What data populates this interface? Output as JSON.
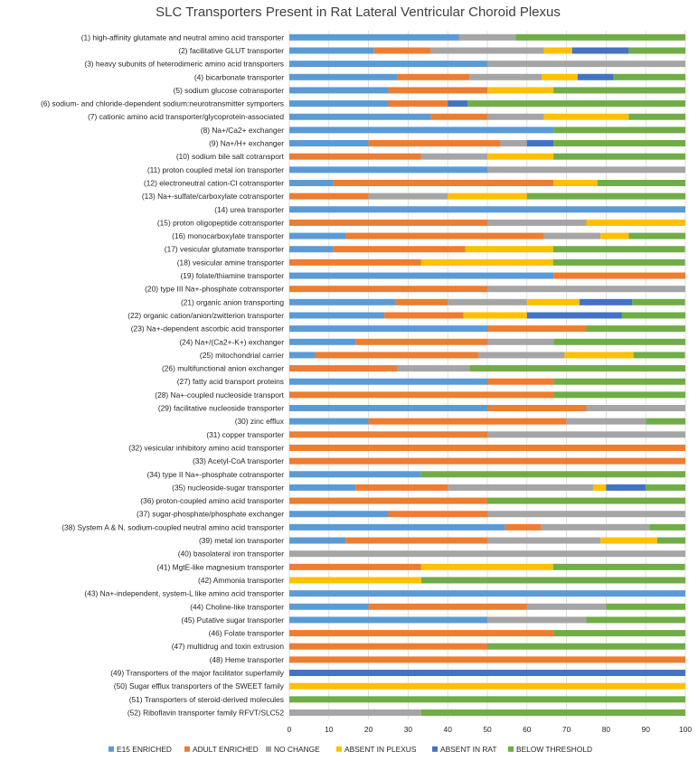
{
  "chart_data": {
    "type": "bar",
    "orientation": "horizontal",
    "stacked": true,
    "title": "SLC Transporters Present in Rat Lateral Ventricular Choroid Plexus",
    "xlim": [
      0,
      100
    ],
    "xticks": [
      "0",
      "10",
      "20",
      "30",
      "40",
      "50",
      "60",
      "70",
      "80",
      "90",
      "100"
    ],
    "grid": "vertical",
    "legend_position": "bottom",
    "categories": [
      "(1) high-affinity glutamate and neutral amino acid transporter",
      "(2) facilitative GLUT transporter",
      "(3) heavy subunits of heterodimeric amino acid transporters",
      "(4) bicarbonate transporter",
      "(5) sodium glucose cotransporter",
      "(6) sodium- and chloride-dependent sodium:neurotransmitter symporters",
      "(7) cationic amino acid transporter/glycoprotein-associated",
      "(8) Na+/Ca2+ exchanger",
      "(9) Na+/H+ exchanger",
      "(10) sodium bile salt cotransport",
      "(11) proton coupled metal ion transporter",
      "(12) electroneutral cation-Cl cotransporter",
      "(13) Na+-sulfate/carboxylate cotransporter",
      "(14) urea transporter",
      "(15) proton oligopeptide cotransporter",
      "(16) monocarboxylate transporter",
      "(17) vesicular glutamate transporter",
      "(18) vesicular amine transporter",
      "(19) folate/thiamine transporter",
      "(20) type III Na+-phosphate cotransporter",
      "(21) organic anion transporting",
      "(22) organic cation/anion/zwitterion transporter",
      "(23) Na+-dependent ascorbic acid transporter",
      "(24) Na+/(Ca2+-K+) exchanger",
      "(25) mitochondrial carrier",
      "(26) multifunctional anion exchanger",
      "(27) fatty acid transport proteins",
      "(28) Na+-coupled nucleoside transport",
      "(29) facilitative nucleoside transporter",
      "(30) zinc efflux",
      "(31) copper transporter",
      "(32) vesicular inhibitory amino acid transporter",
      "(33) Acetyl-CoA transporter",
      "(34) type II Na+-phosphate cotransporter",
      "(35) nucleoside-sugar transporter",
      "(36) proton-coupled amino acid transporter",
      "(37) sugar-phosphate/phosphate exchanger",
      "(38) System A & N, sodium-coupled neutral amino acid transporter",
      "(39) metal ion transporter",
      "(40) basolateral iron transporter",
      "(41) MgtE-like magnesium transporter",
      "(42) Ammonia transporter",
      "(43) Na+-independent, system-L like amino acid transporter",
      "(44) Choline-like transporter",
      "(45) Putative sugar transporter",
      "(46) Folate transporter",
      "(47) multidrug and toxin extrusion",
      "(48) Heme transporter",
      "(49) Transporters of the major facilitator superfamily",
      "(50) Sugar efflux transporters of the SWEET family",
      "(51) Transporters of steroid-derived molecules",
      "(52) Riboflavin transporter family RFVT/SLC52"
    ],
    "series": [
      {
        "name": "E15 ENRICHED",
        "color": "#5b9bd5",
        "values": [
          42.9,
          21.4,
          50,
          27.3,
          25,
          25,
          35.7,
          66.7,
          20,
          0,
          50,
          11.1,
          0,
          100,
          0,
          14.3,
          11.1,
          0,
          66.7,
          0,
          26.7,
          24,
          50,
          16.7,
          6.5,
          0,
          50,
          0,
          50,
          20,
          0,
          0,
          0,
          33.3,
          16.7,
          0,
          25,
          54.5,
          14.3,
          0,
          0,
          0,
          100,
          20,
          50,
          0,
          0,
          0,
          0,
          0,
          0,
          0
        ]
      },
      {
        "name": "ADULT ENRICHED",
        "color": "#ed7d31",
        "values": [
          0,
          14.3,
          0,
          18.2,
          25,
          15,
          14.3,
          0,
          33.3,
          33.3,
          0,
          55.6,
          20,
          0,
          50,
          50,
          33.3,
          33.3,
          33.3,
          50,
          13.3,
          20,
          25,
          33.3,
          41.3,
          27.3,
          16.7,
          66.7,
          25,
          50,
          50,
          100,
          100,
          0,
          23.3,
          50,
          25,
          9.1,
          35.7,
          0,
          33.3,
          0,
          0,
          40,
          0,
          66.7,
          50,
          100,
          0,
          0,
          0,
          0
        ]
      },
      {
        "name": "NO CHANGE",
        "color": "#a5a5a5",
        "values": [
          14.3,
          28.6,
          50,
          18.2,
          0,
          0,
          14.3,
          0,
          6.7,
          16.7,
          50,
          0,
          20,
          0,
          25,
          14.3,
          0,
          0,
          0,
          50,
          20,
          0,
          0,
          16.7,
          21.7,
          18.2,
          0,
          0,
          25,
          20,
          50,
          0,
          0,
          0,
          36.7,
          0,
          50,
          27.3,
          28.6,
          100,
          0,
          0,
          0,
          20,
          25,
          0,
          0,
          0,
          0,
          0,
          0,
          33.3
        ]
      },
      {
        "name": "ABSENT IN PLEXUS",
        "color": "#ffc000",
        "values": [
          0,
          7.1,
          0,
          9.1,
          16.7,
          0,
          21.4,
          0,
          0,
          16.7,
          0,
          11.1,
          20,
          0,
          25,
          7.1,
          22.2,
          33.3,
          0,
          0,
          13.3,
          16,
          0,
          0,
          17.4,
          0,
          0,
          0,
          0,
          0,
          0,
          0,
          0,
          0,
          3.3,
          0,
          0,
          0,
          14.3,
          0,
          33.3,
          33.3,
          0,
          0,
          0,
          0,
          0,
          0,
          0,
          100,
          0,
          0
        ]
      },
      {
        "name": "ABSENT IN RAT",
        "color": "#4472c4",
        "values": [
          0,
          14.3,
          0,
          9.1,
          0,
          5,
          0,
          0,
          6.7,
          0,
          0,
          0,
          0,
          0,
          0,
          0,
          0,
          0,
          0,
          0,
          13.3,
          24,
          0,
          0,
          0,
          0,
          0,
          0,
          0,
          0,
          0,
          0,
          0,
          0,
          10,
          0,
          0,
          0,
          0,
          0,
          0,
          0,
          0,
          0,
          0,
          0,
          0,
          0,
          100,
          0,
          0,
          0
        ]
      },
      {
        "name": "BELOW THRESHOLD",
        "color": "#70ad47",
        "values": [
          42.9,
          14.3,
          0,
          18.2,
          33.3,
          55,
          14.3,
          33.3,
          33.3,
          33.3,
          0,
          22.2,
          40,
          0,
          0,
          14.3,
          33.3,
          33.3,
          0,
          0,
          13.3,
          16,
          25,
          33.3,
          13,
          54.5,
          33.3,
          33.3,
          0,
          10,
          0,
          0,
          0,
          66.7,
          10,
          50,
          0,
          9.1,
          7.1,
          0,
          33.3,
          66.7,
          0,
          20,
          25,
          33.3,
          50,
          0,
          0,
          0,
          100,
          66.7
        ]
      }
    ]
  }
}
